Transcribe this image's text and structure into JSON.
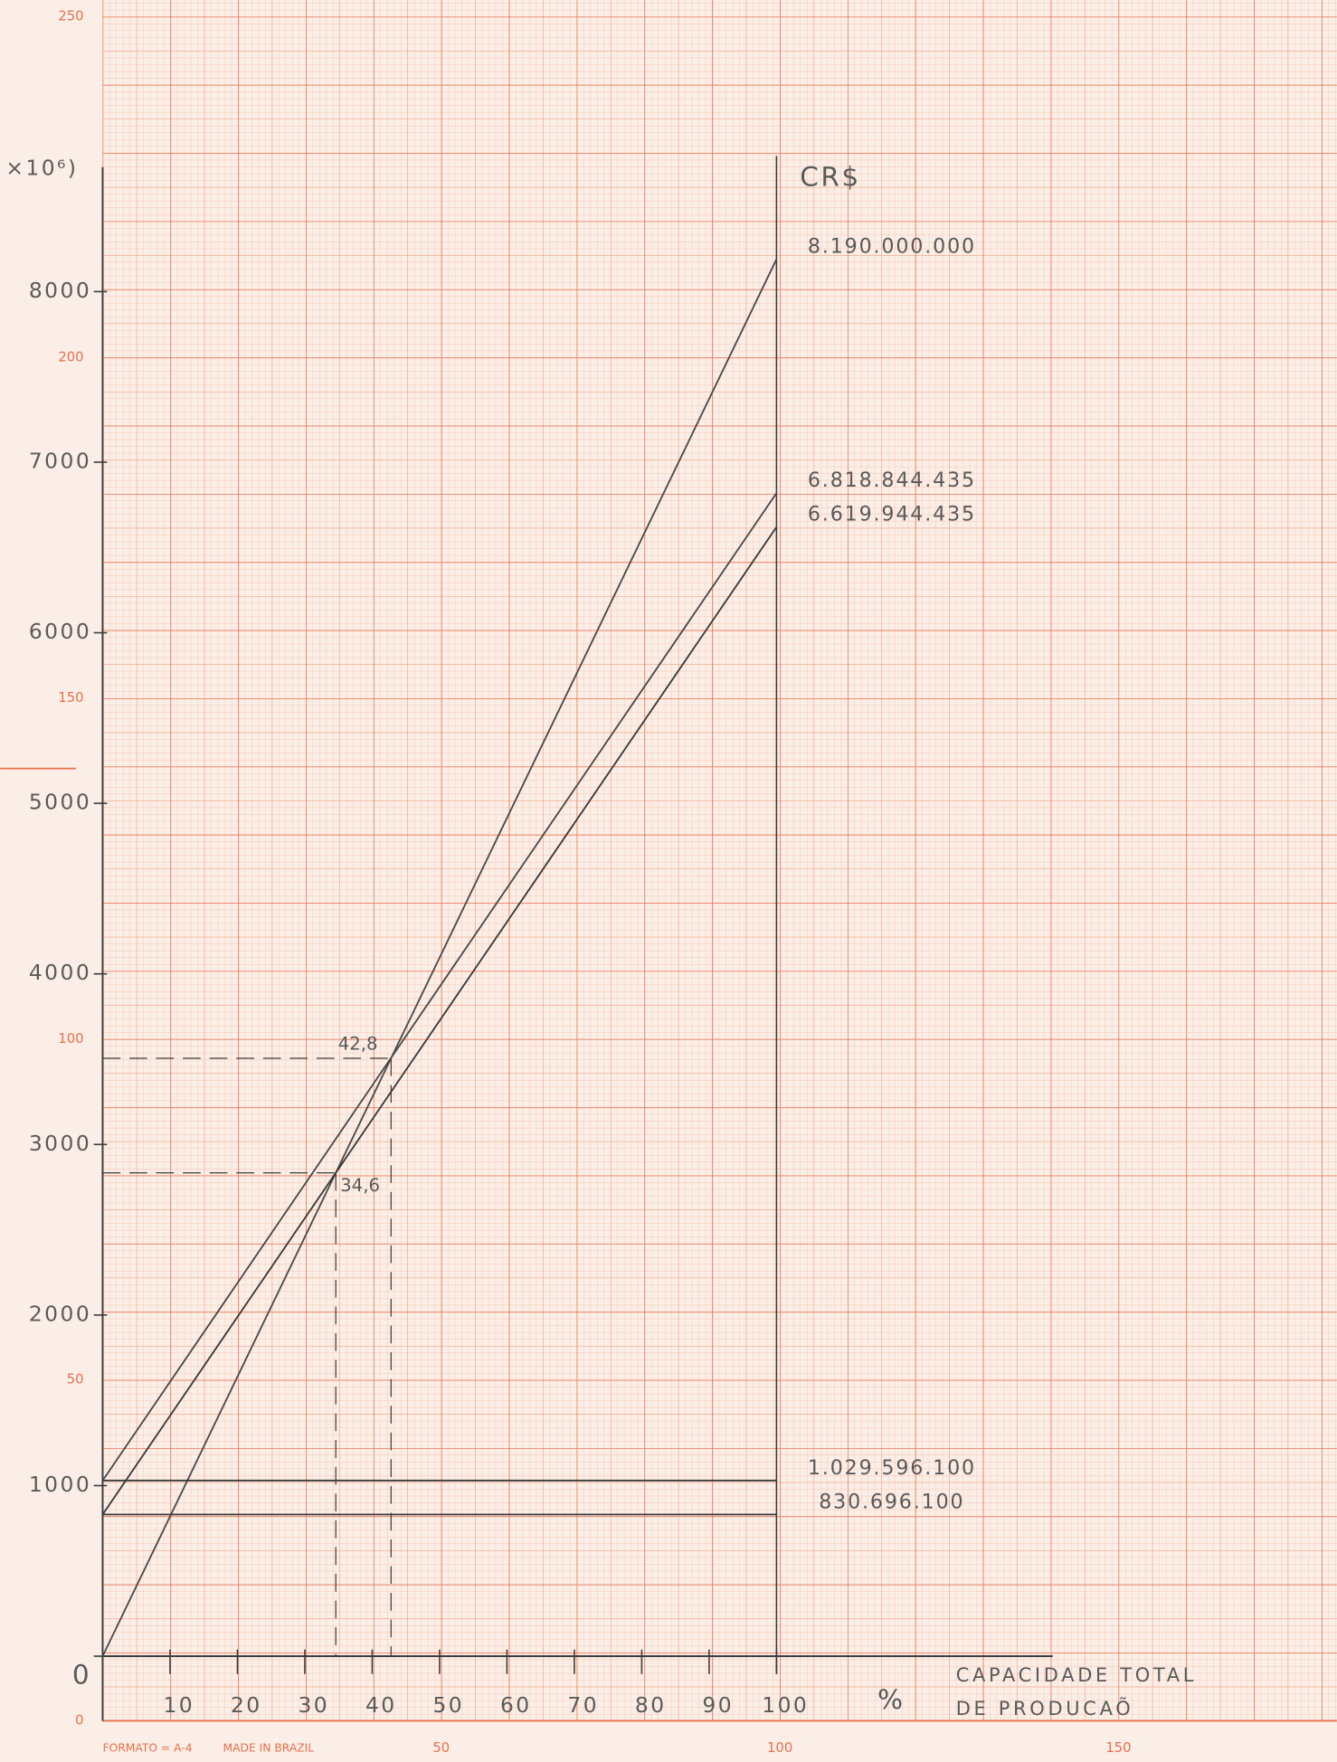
{
  "chart_data": {
    "type": "line",
    "unit_label": "×10⁶)",
    "currency_label": "CR$",
    "x_label": [
      "CAPACIDADE TOTAL",
      "DE PRODUCAÕ"
    ],
    "x_unit_label": "%",
    "x": [
      0,
      100
    ],
    "xlim": [
      0,
      141
    ],
    "ylim": [
      0,
      8730
    ],
    "xticks": [
      10,
      20,
      30,
      40,
      50,
      60,
      70,
      80,
      90,
      100
    ],
    "yticks": [
      0,
      1000,
      2000,
      3000,
      4000,
      5000,
      6000,
      7000,
      8000
    ],
    "series": [
      {
        "color": "#4a4a4a",
        "values": [
          0,
          8190
        ],
        "value_labels": [
          null,
          "8.190.000.000"
        ]
      },
      {
        "color": "#4a4a4a",
        "values": [
          1029.5961,
          6818.844435
        ],
        "value_labels": [
          null,
          "6.818.844.435"
        ]
      },
      {
        "color": "#3a3a3a",
        "values": [
          830.6961,
          6619.944435
        ],
        "value_labels": [
          null,
          "6.619.944.435"
        ]
      },
      {
        "color": "#3a3a3a",
        "values": [
          1029.5961,
          1029.5961
        ],
        "value_labels": [
          null,
          "1.029.596.100"
        ]
      },
      {
        "color": "#3a3a3a",
        "values": [
          830.6961,
          830.6961
        ],
        "value_labels": [
          null,
          "830.696.100"
        ]
      }
    ],
    "annotations": [
      {
        "text": "42,8",
        "x": 42.8
      },
      {
        "text": "34,6",
        "x": 34.6
      }
    ]
  },
  "paper": {
    "left_labels": [
      250,
      200,
      150,
      100,
      50,
      0
    ],
    "bottom_labels": [
      50,
      100,
      150
    ],
    "format": "FORMATO = A-4",
    "made_in": "MADE IN BRAZIL"
  }
}
